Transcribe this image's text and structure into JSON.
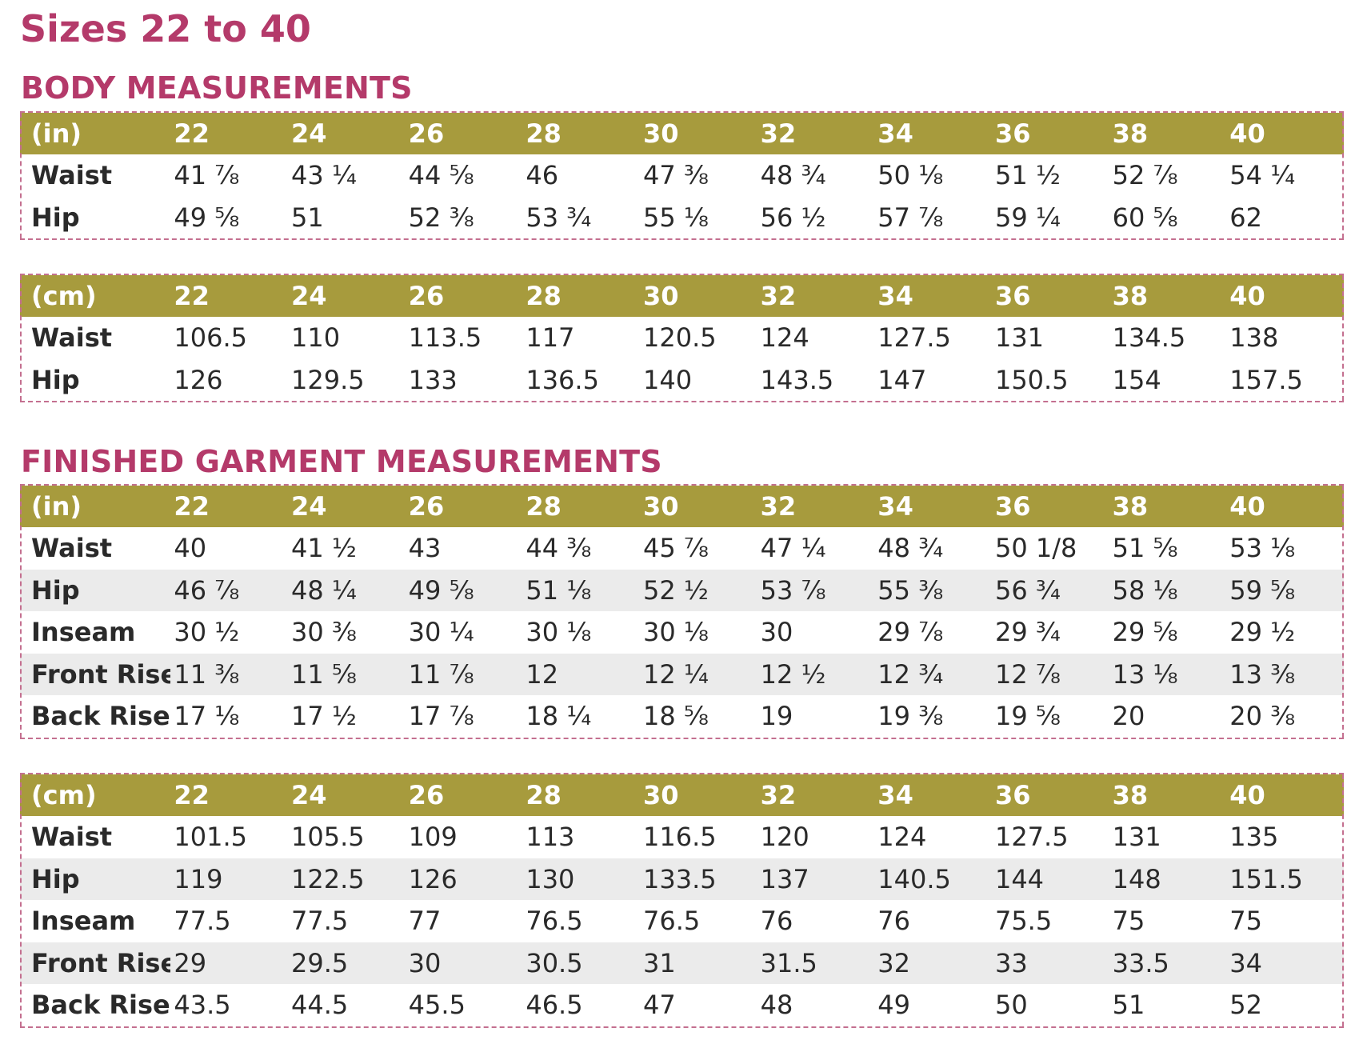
{
  "title": "Sizes 22 to 40",
  "body": {
    "heading": "BODY MEASUREMENTS",
    "inches": {
      "header": [
        "(in)",
        "22",
        "24",
        "26",
        "28",
        "30",
        "32",
        "34",
        "36",
        "38",
        "40"
      ],
      "rows": [
        {
          "label": "Waist",
          "values": [
            "41 ⅞",
            "43 ¼",
            "44 ⅝",
            "46",
            "47 ⅜",
            "48 ¾",
            "50 ⅛",
            "51 ½",
            "52 ⅞",
            "54 ¼"
          ]
        },
        {
          "label": "Hip",
          "values": [
            "49 ⅝",
            "51",
            "52 ⅜",
            "53 ¾",
            "55 ⅛",
            "56 ½",
            "57 ⅞",
            "59 ¼",
            "60 ⅝",
            "62"
          ]
        }
      ]
    },
    "cm": {
      "header": [
        "(cm)",
        "22",
        "24",
        "26",
        "28",
        "30",
        "32",
        "34",
        "36",
        "38",
        "40"
      ],
      "rows": [
        {
          "label": "Waist",
          "values": [
            "106.5",
            "110",
            "113.5",
            "117",
            "120.5",
            "124",
            "127.5",
            "131",
            "134.5",
            "138"
          ]
        },
        {
          "label": "Hip",
          "values": [
            "126",
            "129.5",
            "133",
            "136.5",
            "140",
            "143.5",
            "147",
            "150.5",
            "154",
            "157.5"
          ]
        }
      ]
    }
  },
  "garment": {
    "heading": "FINISHED GARMENT MEASUREMENTS",
    "inches": {
      "header": [
        "(in)",
        "22",
        "24",
        "26",
        "28",
        "30",
        "32",
        "34",
        "36",
        "38",
        "40"
      ],
      "rows": [
        {
          "label": "Waist",
          "values": [
            "40",
            "41 ½",
            "43",
            "44 ⅜",
            "45 ⅞",
            "47 ¼",
            "48 ¾",
            "50 1/8",
            "51 ⅝",
            "53 ⅛"
          ]
        },
        {
          "label": "Hip",
          "values": [
            "46 ⅞",
            "48 ¼",
            "49 ⅝",
            "51 ⅛",
            "52 ½",
            "53 ⅞",
            "55 ⅜",
            "56 ¾",
            "58 ⅛",
            "59 ⅝"
          ]
        },
        {
          "label": "Inseam",
          "values": [
            "30 ½",
            "30 ⅜",
            "30 ¼",
            "30 ⅛",
            "30 ⅛",
            "30",
            "29 ⅞",
            "29 ¾",
            "29 ⅝",
            "29 ½"
          ]
        },
        {
          "label": "Front Rise",
          "values": [
            "11 ⅜",
            "11 ⅝",
            "11 ⅞",
            "12",
            "12 ¼",
            "12 ½",
            "12 ¾",
            "12 ⅞",
            "13 ⅛",
            "13 ⅜"
          ]
        },
        {
          "label": "Back Rise",
          "values": [
            "17 ⅛",
            "17 ½",
            "17 ⅞",
            "18 ¼",
            "18 ⅝",
            "19",
            "19 ⅜",
            "19 ⅝",
            "20",
            "20 ⅜"
          ]
        }
      ]
    },
    "cm": {
      "header": [
        "(cm)",
        "22",
        "24",
        "26",
        "28",
        "30",
        "32",
        "34",
        "36",
        "38",
        "40"
      ],
      "rows": [
        {
          "label": "Waist",
          "values": [
            "101.5",
            "105.5",
            "109",
            "113",
            "116.5",
            "120",
            "124",
            "127.5",
            "131",
            "135"
          ]
        },
        {
          "label": "Hip",
          "values": [
            "119",
            "122.5",
            "126",
            "130",
            "133.5",
            "137",
            "140.5",
            "144",
            "148",
            "151.5"
          ]
        },
        {
          "label": "Inseam",
          "values": [
            "77.5",
            "77.5",
            "77",
            "76.5",
            "76.5",
            "76",
            "76",
            "75.5",
            "75",
            "75"
          ]
        },
        {
          "label": "Front Rise",
          "values": [
            "29",
            "29.5",
            "30",
            "30.5",
            "31",
            "31.5",
            "32",
            "33",
            "33.5",
            "34"
          ]
        },
        {
          "label": "Back Rise",
          "values": [
            "43.5",
            "44.5",
            "45.5",
            "46.5",
            "47",
            "48",
            "49",
            "50",
            "51",
            "52"
          ]
        }
      ]
    }
  }
}
